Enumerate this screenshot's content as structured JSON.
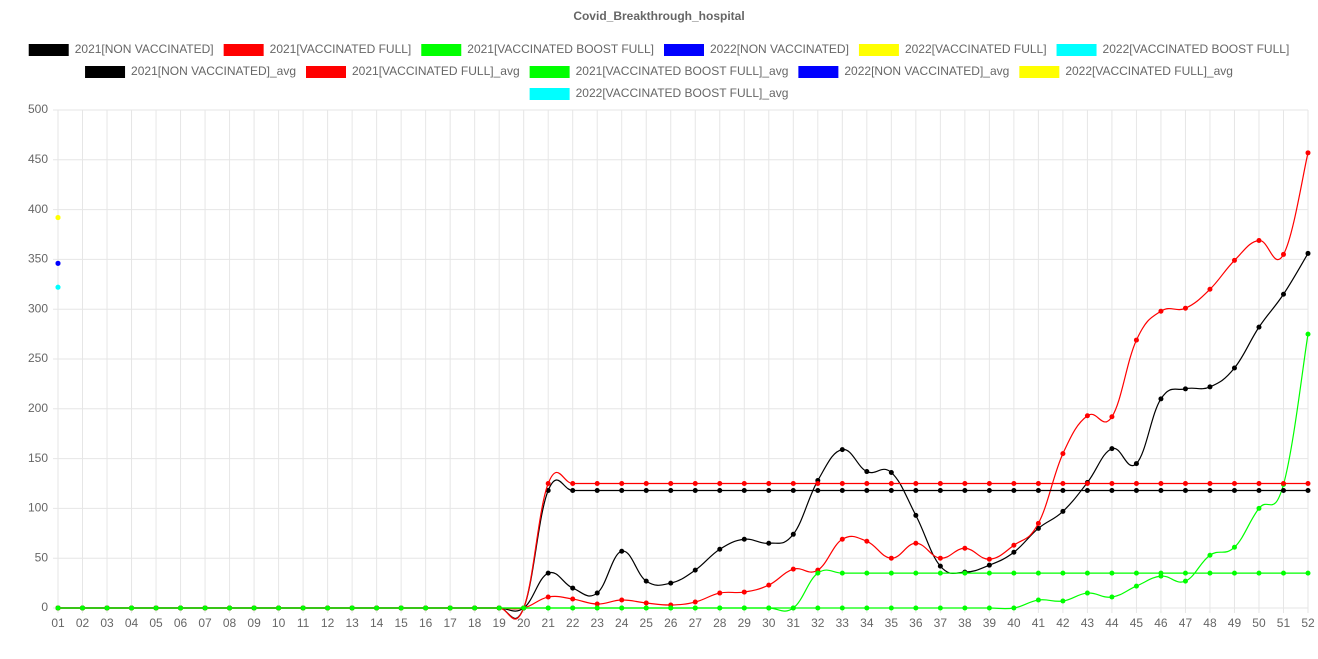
{
  "chart_data": {
    "type": "line",
    "title": "Covid_Breakthrough_hospital",
    "categories": [
      "01",
      "02",
      "03",
      "04",
      "05",
      "06",
      "07",
      "08",
      "09",
      "10",
      "11",
      "12",
      "13",
      "14",
      "15",
      "16",
      "17",
      "18",
      "19",
      "20",
      "21",
      "22",
      "23",
      "24",
      "25",
      "26",
      "27",
      "28",
      "29",
      "30",
      "31",
      "32",
      "33",
      "34",
      "35",
      "36",
      "37",
      "38",
      "39",
      "40",
      "41",
      "42",
      "43",
      "44",
      "45",
      "46",
      "47",
      "48",
      "49",
      "50",
      "51",
      "52"
    ],
    "series": [
      {
        "name": "2021[NON VACCINATED]",
        "color": "#000000",
        "values": [
          0,
          0,
          0,
          0,
          0,
          0,
          0,
          0,
          0,
          0,
          0,
          0,
          0,
          0,
          0,
          0,
          0,
          0,
          0,
          0,
          35,
          20,
          15,
          57,
          27,
          25,
          38,
          59,
          69,
          65,
          74,
          128,
          159,
          137,
          136,
          93,
          42,
          36,
          43,
          56,
          80,
          97,
          126,
          160,
          145,
          210,
          220,
          222,
          241,
          282,
          315,
          356
        ]
      },
      {
        "name": "2021[VACCINATED FULL]",
        "color": "#ff0000",
        "values": [
          0,
          0,
          0,
          0,
          0,
          0,
          0,
          0,
          0,
          0,
          0,
          0,
          0,
          0,
          0,
          0,
          0,
          0,
          0,
          0,
          11,
          9,
          4,
          8,
          5,
          3,
          6,
          15,
          16,
          23,
          39,
          38,
          69,
          67,
          50,
          65,
          50,
          60,
          49,
          63,
          85,
          155,
          193,
          192,
          269,
          298,
          301,
          320,
          349,
          369,
          355,
          457
        ]
      },
      {
        "name": "2021[VACCINATED BOOST FULL]",
        "color": "#00ff00",
        "values": [
          0,
          0,
          0,
          0,
          0,
          0,
          0,
          0,
          0,
          0,
          0,
          0,
          0,
          0,
          0,
          0,
          0,
          0,
          0,
          0,
          0,
          0,
          0,
          0,
          0,
          0,
          0,
          0,
          0,
          0,
          0,
          0,
          0,
          0,
          0,
          0,
          0,
          0,
          0,
          0,
          8,
          7,
          15,
          11,
          22,
          32,
          27,
          53,
          61,
          100,
          124,
          275
        ]
      },
      {
        "name": "2022[NON VACCINATED]",
        "color": "#0000ff",
        "values": [
          346,
          null,
          null,
          null,
          null,
          null,
          null,
          null,
          null,
          null,
          null,
          null,
          null,
          null,
          null,
          null,
          null,
          null,
          null,
          null,
          null,
          null,
          null,
          null,
          null,
          null,
          null,
          null,
          null,
          null,
          null,
          null,
          null,
          null,
          null,
          null,
          null,
          null,
          null,
          null,
          null,
          null,
          null,
          null,
          null,
          null,
          null,
          null,
          null,
          null,
          null,
          null
        ]
      },
      {
        "name": "2022[VACCINATED FULL]",
        "color": "#ffff00",
        "values": [
          392,
          null,
          null,
          null,
          null,
          null,
          null,
          null,
          null,
          null,
          null,
          null,
          null,
          null,
          null,
          null,
          null,
          null,
          null,
          null,
          null,
          null,
          null,
          null,
          null,
          null,
          null,
          null,
          null,
          null,
          null,
          null,
          null,
          null,
          null,
          null,
          null,
          null,
          null,
          null,
          null,
          null,
          null,
          null,
          null,
          null,
          null,
          null,
          null,
          null,
          null,
          null
        ]
      },
      {
        "name": "2022[VACCINATED BOOST FULL]",
        "color": "#00ffff",
        "values": [
          322,
          null,
          null,
          null,
          null,
          null,
          null,
          null,
          null,
          null,
          null,
          null,
          null,
          null,
          null,
          null,
          null,
          null,
          null,
          null,
          null,
          null,
          null,
          null,
          null,
          null,
          null,
          null,
          null,
          null,
          null,
          null,
          null,
          null,
          null,
          null,
          null,
          null,
          null,
          null,
          null,
          null,
          null,
          null,
          null,
          null,
          null,
          null,
          null,
          null,
          null,
          null
        ]
      },
      {
        "name": "2021[NON VACCINATED]_avg",
        "color": "#000000",
        "values": [
          0,
          0,
          0,
          0,
          0,
          0,
          0,
          0,
          0,
          0,
          0,
          0,
          0,
          0,
          0,
          0,
          0,
          0,
          0,
          0,
          118,
          118,
          118,
          118,
          118,
          118,
          118,
          118,
          118,
          118,
          118,
          118,
          118,
          118,
          118,
          118,
          118,
          118,
          118,
          118,
          118,
          118,
          118,
          118,
          118,
          118,
          118,
          118,
          118,
          118,
          118,
          118
        ]
      },
      {
        "name": "2021[VACCINATED FULL]_avg",
        "color": "#ff0000",
        "values": [
          0,
          0,
          0,
          0,
          0,
          0,
          0,
          0,
          0,
          0,
          0,
          0,
          0,
          0,
          0,
          0,
          0,
          0,
          0,
          0,
          125,
          125,
          125,
          125,
          125,
          125,
          125,
          125,
          125,
          125,
          125,
          125,
          125,
          125,
          125,
          125,
          125,
          125,
          125,
          125,
          125,
          125,
          125,
          125,
          125,
          125,
          125,
          125,
          125,
          125,
          125,
          125
        ]
      },
      {
        "name": "2021[VACCINATED BOOST FULL]_avg",
        "color": "#00ff00",
        "values": [
          0,
          0,
          0,
          0,
          0,
          0,
          0,
          0,
          0,
          0,
          0,
          0,
          0,
          0,
          0,
          0,
          0,
          0,
          0,
          0,
          0,
          0,
          0,
          0,
          0,
          0,
          0,
          0,
          0,
          0,
          0,
          35,
          35,
          35,
          35,
          35,
          35,
          35,
          35,
          35,
          35,
          35,
          35,
          35,
          35,
          35,
          35,
          35,
          35,
          35,
          35,
          35
        ]
      },
      {
        "name": "2022[NON VACCINATED]_avg",
        "color": "#0000ff",
        "values": [
          346,
          null,
          null,
          null,
          null,
          null,
          null,
          null,
          null,
          null,
          null,
          null,
          null,
          null,
          null,
          null,
          null,
          null,
          null,
          null,
          null,
          null,
          null,
          null,
          null,
          null,
          null,
          null,
          null,
          null,
          null,
          null,
          null,
          null,
          null,
          null,
          null,
          null,
          null,
          null,
          null,
          null,
          null,
          null,
          null,
          null,
          null,
          null,
          null,
          null,
          null,
          null
        ]
      },
      {
        "name": "2022[VACCINATED FULL]_avg",
        "color": "#ffff00",
        "values": [
          392,
          null,
          null,
          null,
          null,
          null,
          null,
          null,
          null,
          null,
          null,
          null,
          null,
          null,
          null,
          null,
          null,
          null,
          null,
          null,
          null,
          null,
          null,
          null,
          null,
          null,
          null,
          null,
          null,
          null,
          null,
          null,
          null,
          null,
          null,
          null,
          null,
          null,
          null,
          null,
          null,
          null,
          null,
          null,
          null,
          null,
          null,
          null,
          null,
          null,
          null,
          null
        ]
      },
      {
        "name": "2022[VACCINATED BOOST FULL]_avg",
        "color": "#00ffff",
        "values": [
          322,
          null,
          null,
          null,
          null,
          null,
          null,
          null,
          null,
          null,
          null,
          null,
          null,
          null,
          null,
          null,
          null,
          null,
          null,
          null,
          null,
          null,
          null,
          null,
          null,
          null,
          null,
          null,
          null,
          null,
          null,
          null,
          null,
          null,
          null,
          null,
          null,
          null,
          null,
          null,
          null,
          null,
          null,
          null,
          null,
          null,
          null,
          null,
          null,
          null,
          null,
          null
        ]
      }
    ],
    "ylim": [
      0,
      500
    ],
    "yticks": [
      0,
      50,
      100,
      150,
      200,
      250,
      300,
      350,
      400,
      450,
      500
    ],
    "grid": true,
    "legend": "top"
  }
}
